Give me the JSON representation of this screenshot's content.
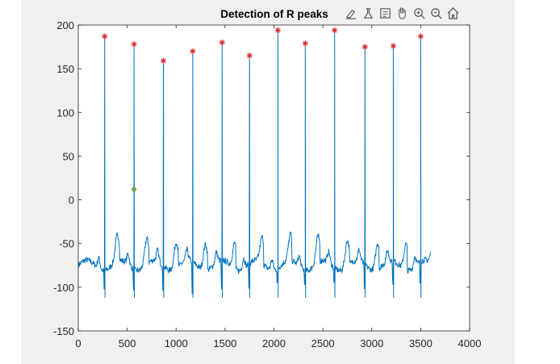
{
  "toolbar": {
    "icons": [
      "brush-icon",
      "data-tips-icon",
      "legend-icon",
      "pan-icon",
      "zoom-in-icon",
      "zoom-out-icon",
      "home-icon"
    ]
  },
  "colors": {
    "signal": "#0072BD",
    "peak_marker": "#d62728",
    "point_marker": "#77ac30",
    "axes_bg": "#ffffff",
    "figure_bg": "#f0f0f0"
  },
  "chart_data": {
    "type": "line",
    "title": "Detection of R peaks",
    "xlabel": "",
    "ylabel": "",
    "xlim": [
      0,
      4000
    ],
    "ylim": [
      -150,
      200
    ],
    "xticks": [
      0,
      500,
      1000,
      1500,
      2000,
      2500,
      3000,
      3500,
      4000
    ],
    "yticks": [
      -150,
      -100,
      -50,
      0,
      50,
      100,
      150,
      200
    ],
    "grid": false,
    "legend": "none",
    "signal_x_range": [
      0,
      3600
    ],
    "series": [
      {
        "type": "scatter",
        "marker": "*",
        "x": [
          270,
          570,
          870,
          1170,
          1470,
          1750,
          2040,
          2320,
          2620,
          2930,
          3220,
          3500
        ],
        "values": [
          187,
          178,
          159,
          170,
          180,
          165,
          194,
          179,
          194,
          175,
          176,
          187
        ]
      },
      {
        "type": "scatter",
        "marker": "o",
        "x": [
          570
        ],
        "values": [
          12
        ]
      }
    ]
  }
}
